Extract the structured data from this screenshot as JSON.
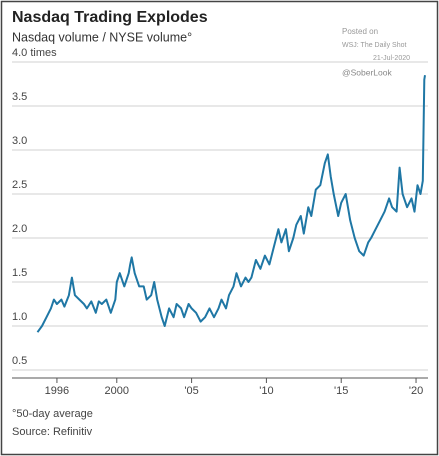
{
  "chart_data": {
    "type": "line",
    "title": "Nasdaq Trading Explodes",
    "subtitle": "Nasdaq volume / NYSE volume°",
    "annotations": [
      "Posted on",
      "WSJ: The Daily Shot",
      "21-Jul-2020",
      "@SoberLook"
    ],
    "footnote": "°50-day average",
    "source": "Source: Refinitiv",
    "color": "#1f77a5",
    "grid": true,
    "xlim": [
      1994,
      2021
    ],
    "ylim": [
      0.5,
      4.0
    ],
    "xticks": [
      1996,
      2000,
      {
        "value": 2005,
        "label": "'05"
      },
      {
        "value": 2010,
        "label": "'10"
      },
      {
        "value": 2015,
        "label": "'15"
      },
      {
        "value": 2020,
        "label": "'20"
      }
    ],
    "yticks": [
      0.5,
      {
        "value": 1.0,
        "label": "1.0"
      },
      1.5,
      {
        "value": 2.0,
        "label": "2.0"
      },
      2.5,
      {
        "value": 3.0,
        "label": "3.0"
      },
      3.5,
      {
        "value": 4.0,
        "label": "4.0 times"
      }
    ],
    "x": [
      1994.7,
      1995.0,
      1995.3,
      1995.6,
      1995.8,
      1996.0,
      1996.3,
      1996.5,
      1996.8,
      1997.0,
      1997.2,
      1997.5,
      1997.8,
      1998.0,
      1998.3,
      1998.6,
      1998.8,
      1999.0,
      1999.3,
      1999.6,
      1999.9,
      2000.0,
      2000.2,
      2000.5,
      2000.8,
      2000.9,
      2001.0,
      2001.2,
      2001.5,
      2001.8,
      2002.0,
      2002.3,
      2002.5,
      2002.7,
      2003.0,
      2003.2,
      2003.5,
      2003.8,
      2004.0,
      2004.3,
      2004.5,
      2004.8,
      2005.0,
      2005.3,
      2005.6,
      2005.9,
      2006.2,
      2006.5,
      2006.8,
      2007.0,
      2007.3,
      2007.5,
      2007.8,
      2008.0,
      2008.3,
      2008.6,
      2008.8,
      2009.0,
      2009.3,
      2009.6,
      2009.9,
      2010.2,
      2010.5,
      2010.8,
      2011.0,
      2011.3,
      2011.5,
      2011.8,
      2012.0,
      2012.3,
      2012.5,
      2012.8,
      2013.0,
      2013.3,
      2013.6,
      2013.9,
      2014.1,
      2014.3,
      2014.5,
      2014.8,
      2015.0,
      2015.3,
      2015.6,
      2015.9,
      2016.2,
      2016.5,
      2016.8,
      2017.0,
      2017.3,
      2017.6,
      2017.9,
      2018.2,
      2018.4,
      2018.7,
      2018.9,
      2019.1,
      2019.4,
      2019.7,
      2019.9,
      2020.1,
      2020.3,
      2020.45,
      2020.55,
      2020.6
    ],
    "values": [
      0.93,
      1.0,
      1.1,
      1.2,
      1.3,
      1.25,
      1.3,
      1.22,
      1.35,
      1.55,
      1.35,
      1.3,
      1.25,
      1.2,
      1.28,
      1.15,
      1.28,
      1.25,
      1.3,
      1.15,
      1.3,
      1.5,
      1.6,
      1.45,
      1.6,
      1.7,
      1.78,
      1.6,
      1.45,
      1.45,
      1.3,
      1.35,
      1.5,
      1.3,
      1.1,
      1.0,
      1.2,
      1.1,
      1.25,
      1.2,
      1.1,
      1.25,
      1.2,
      1.15,
      1.05,
      1.1,
      1.2,
      1.1,
      1.2,
      1.3,
      1.2,
      1.35,
      1.45,
      1.6,
      1.45,
      1.55,
      1.5,
      1.55,
      1.75,
      1.65,
      1.8,
      1.7,
      1.9,
      2.1,
      1.95,
      2.1,
      1.85,
      2.0,
      2.15,
      2.25,
      2.05,
      2.35,
      2.25,
      2.55,
      2.6,
      2.85,
      2.95,
      2.7,
      2.5,
      2.25,
      2.4,
      2.5,
      2.2,
      2.0,
      1.85,
      1.8,
      1.95,
      2.0,
      2.1,
      2.2,
      2.3,
      2.45,
      2.35,
      2.3,
      2.8,
      2.5,
      2.35,
      2.45,
      2.3,
      2.6,
      2.5,
      2.65,
      3.8,
      3.85
    ]
  }
}
